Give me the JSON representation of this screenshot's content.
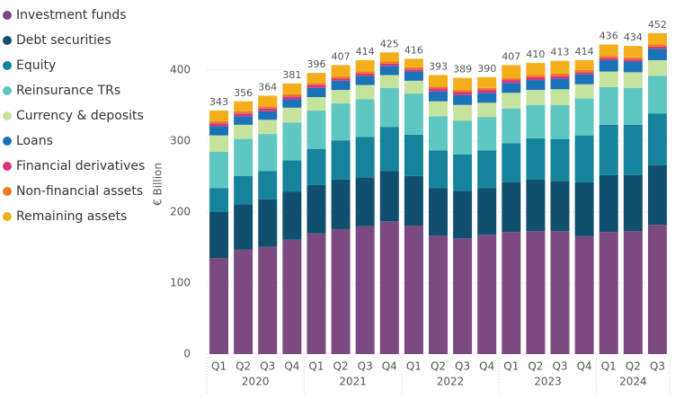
{
  "chart_data": {
    "type": "stacked_bar",
    "y_label": "€ Billion",
    "categories": [
      "Q1",
      "Q2",
      "Q3",
      "Q4",
      "Q1",
      "Q2",
      "Q3",
      "Q4",
      "Q1",
      "Q2",
      "Q3",
      "Q4",
      "Q1",
      "Q2",
      "Q3",
      "Q4",
      "Q1",
      "Q2",
      "Q3"
    ],
    "x_groups": [
      "2020",
      "2021",
      "2022",
      "2023",
      "2024"
    ],
    "series": [
      {
        "name": "Investment funds",
        "color": "#7b4a80",
        "values": [
          135,
          147,
          151,
          161,
          170,
          176,
          180,
          187,
          181,
          167,
          163,
          168,
          172,
          173,
          173,
          166,
          172,
          173,
          182
        ]
      },
      {
        "name": "Debt securities",
        "color": "#114f6e",
        "values": [
          65,
          64,
          67,
          68,
          68,
          70,
          69,
          71,
          70,
          67,
          67,
          66,
          70,
          73,
          71,
          76,
          80,
          79,
          84
        ]
      },
      {
        "name": "Equity",
        "color": "#14839b",
        "values": [
          34,
          40,
          40,
          44,
          51,
          55,
          57,
          62,
          58,
          53,
          51,
          53,
          55,
          58,
          59,
          66,
          71,
          71,
          73
        ]
      },
      {
        "name": "Reinsurance TRs",
        "color": "#5ec7c2",
        "values": [
          51,
          52,
          52,
          53,
          54,
          52,
          53,
          55,
          58,
          48,
          48,
          47,
          49,
          47,
          48,
          52,
          53,
          52,
          53
        ]
      },
      {
        "name": "Currency & deposits",
        "color": "#c6e39e",
        "values": [
          23,
          20,
          20,
          21,
          19,
          19,
          20,
          18,
          18,
          21,
          22,
          20,
          22,
          21,
          22,
          20,
          22,
          22,
          22
        ]
      },
      {
        "name": "Loans",
        "color": "#1a72b8",
        "values": [
          13,
          12,
          12,
          12,
          13,
          13,
          13,
          13,
          13,
          14,
          14,
          14,
          14,
          14,
          15,
          14,
          16,
          15,
          16
        ]
      },
      {
        "name": "Financial derivatives",
        "color": "#d9357f",
        "values": [
          4,
          4,
          4,
          4,
          4,
          3,
          3,
          3,
          3,
          4,
          4,
          4,
          4,
          4,
          4,
          3,
          3,
          3,
          3
        ]
      },
      {
        "name": "Non-financial assets",
        "color": "#ef7a26",
        "values": [
          3,
          3,
          3,
          3,
          3,
          3,
          3,
          3,
          3,
          3,
          3,
          3,
          3,
          3,
          3,
          3,
          3,
          3,
          3
        ]
      },
      {
        "name": "Remaining assets",
        "color": "#f4ae1a",
        "values": [
          15,
          14,
          15,
          15,
          14,
          16,
          16,
          13,
          12,
          16,
          17,
          15,
          18,
          17,
          18,
          14,
          16,
          16,
          16
        ]
      }
    ],
    "totals": [
      343,
      356,
      364,
      381,
      396,
      407,
      414,
      425,
      416,
      393,
      389,
      390,
      407,
      410,
      413,
      414,
      436,
      434,
      452
    ],
    "ylim": [
      0,
      460
    ],
    "yticks": [
      0,
      100,
      200,
      300,
      400
    ],
    "grid": true
  }
}
